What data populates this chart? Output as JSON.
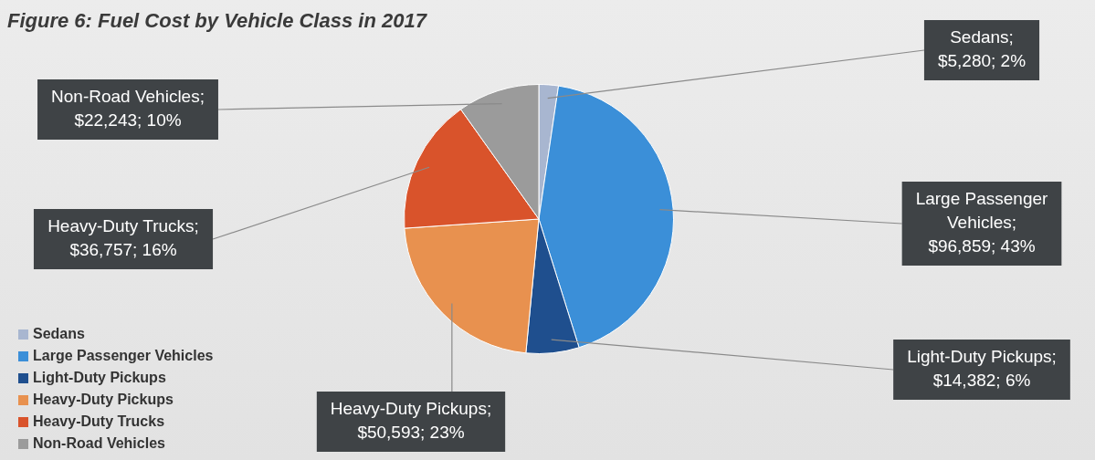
{
  "chart_data": {
    "type": "pie",
    "title": "Figure 6: Fuel Cost by Vehicle Class in 2017",
    "categories": [
      "Sedans",
      "Large Passenger Vehicles",
      "Light-Duty Pickups",
      "Heavy-Duty Pickups",
      "Heavy-Duty Trucks",
      "Non-Road Vehicles"
    ],
    "values": [
      5280,
      96859,
      14382,
      50593,
      36757,
      22243
    ],
    "colors": [
      "#a8b6d0",
      "#3b8fd8",
      "#1f4f8e",
      "#e8914f",
      "#d9532b",
      "#9b9b9b"
    ],
    "value_labels": [
      "Sedans;\n$5,280; 2%",
      "Large Passenger\nVehicles;\n$96,859; 43%",
      "Light-Duty Pickups;\n$14,382; 6%",
      "Heavy-Duty Pickups;\n$50,593; 23%",
      "Heavy-Duty Trucks;\n$36,757; 16%",
      "Non-Road Vehicles;\n$22,243; 10%"
    ],
    "legend": "bottom left"
  }
}
